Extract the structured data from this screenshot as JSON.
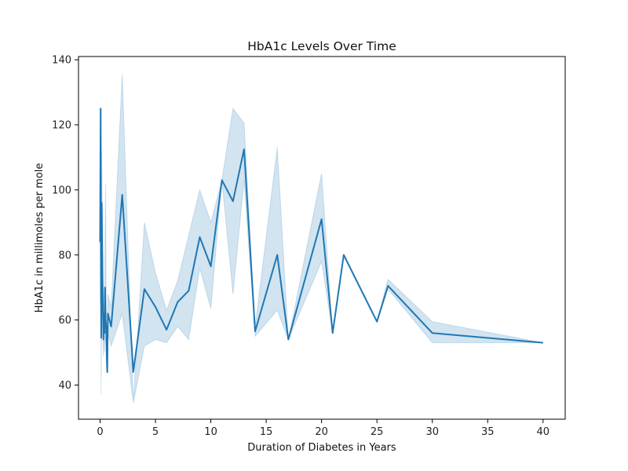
{
  "chart_data": {
    "type": "line",
    "title": "HbA1c Levels Over Time",
    "xlabel": "Duration of Diabetes in Years",
    "ylabel": "HbA1c in millimoles per mole",
    "xlim": [
      -1.95,
      42.0
    ],
    "ylim": [
      29.5,
      141.0
    ],
    "xticks": [
      0,
      5,
      10,
      15,
      20,
      25,
      30,
      35,
      40
    ],
    "yticks": [
      40,
      60,
      80,
      100,
      120,
      140
    ],
    "grid": false,
    "legend": "none",
    "line_color": "#1f77b4",
    "band_color": "#1f77b4",
    "band_opacity": 0.2,
    "series": [
      {
        "x": [
          0.0,
          0.05,
          0.1,
          0.15,
          0.2,
          0.25,
          0.3,
          0.35,
          0.4,
          0.45,
          0.5,
          0.55,
          0.6,
          0.65,
          0.7,
          1.0,
          2.0,
          3.0,
          4.0,
          5.0,
          6.0,
          7.0,
          8.0,
          9.0,
          10.0,
          11.0,
          12.0,
          13.0,
          14.0,
          16.0,
          17.0,
          20.0,
          21.0,
          22.0,
          25.0,
          26.0,
          30.0,
          40.0
        ],
        "y": [
          84,
          125,
          54.5,
          96,
          80,
          64,
          54,
          62,
          56,
          70,
          60,
          58,
          49,
          44,
          62,
          58,
          98.5,
          44,
          69.5,
          64,
          57,
          65.5,
          69,
          85.5,
          76.5,
          103,
          96.5,
          112.5,
          56.5,
          80,
          54,
          91,
          56,
          80,
          59.5,
          70.5,
          56,
          53
        ],
        "lower": [
          65,
          115,
          37,
          80,
          70,
          56,
          49,
          55,
          50,
          62,
          54,
          52,
          44,
          43.5,
          56,
          52,
          62,
          34.5,
          52,
          54,
          53,
          58,
          54,
          76,
          63.5,
          103,
          68,
          103,
          55,
          63,
          54,
          78,
          56,
          80,
          59.5,
          69.5,
          53,
          53
        ],
        "upper": [
          100,
          125,
          75,
          112,
          92,
          72,
          60,
          70,
          62,
          85,
          102,
          65,
          55,
          44.5,
          68,
          64,
          135.5,
          34.5,
          90,
          74.5,
          63,
          72,
          86,
          100,
          90,
          103,
          125,
          120.5,
          58,
          113,
          54,
          105,
          56,
          80,
          59.5,
          72.5,
          59.5,
          53
        ]
      }
    ]
  }
}
